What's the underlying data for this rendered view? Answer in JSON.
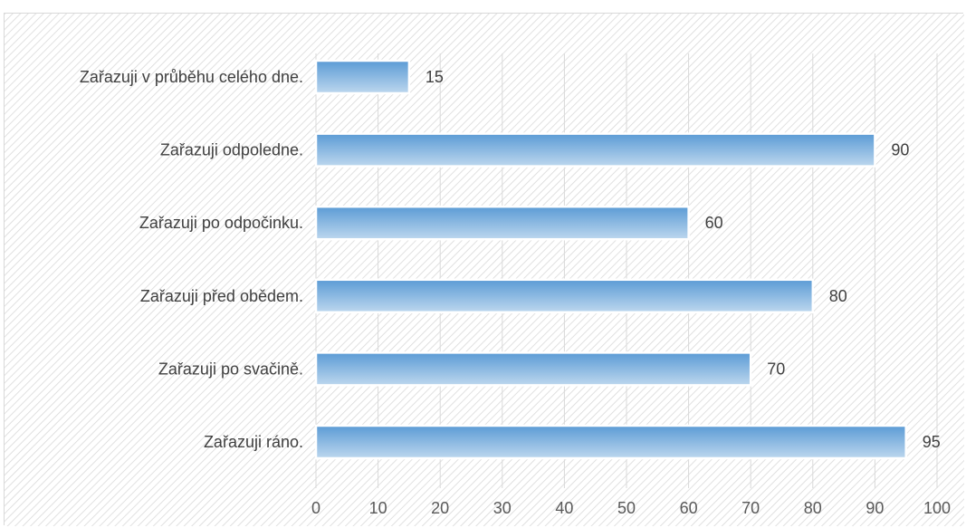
{
  "chart_data": {
    "type": "bar",
    "orientation": "horizontal",
    "categories": [
      "Zařazuji v průběhu celého dne.",
      "Zařazuji odpoledne.",
      "Zařazuji po odpočinku.",
      "Zařazuji před obědem.",
      "Zařazuji po svačině.",
      "Zařazuji ráno."
    ],
    "values": [
      15,
      90,
      60,
      80,
      70,
      95
    ],
    "x_ticks": [
      "0",
      "10",
      "20",
      "30",
      "40",
      "50",
      "60",
      "70",
      "80",
      "90",
      "100"
    ],
    "xlim": [
      0,
      100
    ],
    "title": "",
    "xlabel": "",
    "ylabel": "",
    "grid": "vertical",
    "legend": "none",
    "data_labels": true,
    "colors": {
      "bar_top": "#5b9bd5",
      "bar_bottom": "#bdd7ee",
      "gridline": "#d9d9d9",
      "background_hatch": "#d9d9d9",
      "bar_outline": "#ffffff"
    }
  }
}
